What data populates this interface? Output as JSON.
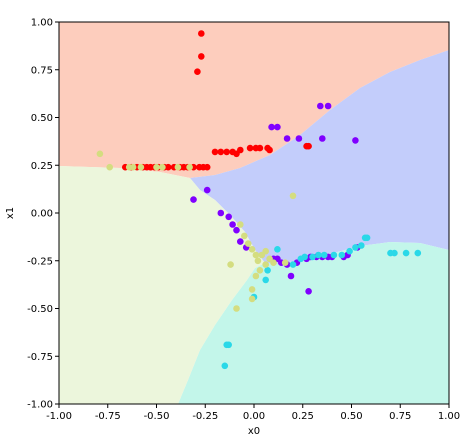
{
  "chart_data": {
    "type": "scatter",
    "title": "",
    "xlabel": "x0",
    "ylabel": "x1",
    "xlim": [
      -1.0,
      1.0
    ],
    "ylim": [
      -1.0,
      1.0
    ],
    "xticks": [
      "-1.00",
      "-0.75",
      "-0.50",
      "-0.25",
      "0.00",
      "0.25",
      "0.50",
      "0.75",
      "1.00"
    ],
    "yticks": [
      "1.00",
      "0.75",
      "0.50",
      "0.25",
      "0.00",
      "-0.25",
      "-0.50",
      "-0.75",
      "-1.00"
    ],
    "grid": false,
    "legend": "none",
    "decision_regions": [
      {
        "class": "red",
        "color": "#fdcdbd"
      },
      {
        "class": "purple",
        "color": "#c3cdfb"
      },
      {
        "class": "cyan",
        "color": "#c3f6ea"
      },
      {
        "class": "yellow",
        "color": "#ecf6dc"
      }
    ],
    "series": [
      {
        "color": "#ff0000",
        "points": [
          [
            -0.27,
            0.94
          ],
          [
            -0.27,
            0.82
          ],
          [
            -0.29,
            0.74
          ],
          [
            -0.66,
            0.24
          ],
          [
            -0.63,
            0.24
          ],
          [
            -0.6,
            0.24
          ],
          [
            -0.57,
            0.24
          ],
          [
            -0.55,
            0.24
          ],
          [
            -0.53,
            0.24
          ],
          [
            -0.51,
            0.24
          ],
          [
            -0.49,
            0.24
          ],
          [
            -0.46,
            0.24
          ],
          [
            -0.44,
            0.24
          ],
          [
            -0.41,
            0.24
          ],
          [
            -0.38,
            0.24
          ],
          [
            -0.36,
            0.24
          ],
          [
            -0.34,
            0.24
          ],
          [
            -0.31,
            0.24
          ],
          [
            -0.28,
            0.24
          ],
          [
            -0.26,
            0.24
          ],
          [
            -0.24,
            0.24
          ],
          [
            -0.2,
            0.32
          ],
          [
            -0.17,
            0.32
          ],
          [
            -0.14,
            0.32
          ],
          [
            -0.11,
            0.32
          ],
          [
            -0.09,
            0.31
          ],
          [
            -0.07,
            0.33
          ],
          [
            -0.02,
            0.34
          ],
          [
            0.01,
            0.34
          ],
          [
            0.03,
            0.34
          ],
          [
            0.07,
            0.34
          ],
          [
            0.08,
            0.33
          ],
          [
            0.27,
            0.35
          ],
          [
            0.28,
            0.35
          ]
        ]
      },
      {
        "color": "#8000ff",
        "points": [
          [
            0.09,
            0.45
          ],
          [
            0.12,
            0.45
          ],
          [
            0.34,
            0.56
          ],
          [
            0.38,
            0.56
          ],
          [
            0.17,
            0.39
          ],
          [
            0.23,
            0.39
          ],
          [
            0.35,
            0.39
          ],
          [
            0.52,
            0.38
          ],
          [
            -0.31,
            0.07
          ],
          [
            -0.24,
            0.12
          ],
          [
            -0.17,
            0.0
          ],
          [
            -0.13,
            -0.02
          ],
          [
            -0.11,
            -0.06
          ],
          [
            -0.09,
            -0.09
          ],
          [
            -0.07,
            -0.15
          ],
          [
            -0.04,
            -0.18
          ],
          [
            0.1,
            -0.24
          ],
          [
            0.12,
            -0.24
          ],
          [
            0.14,
            -0.26
          ],
          [
            0.17,
            -0.27
          ],
          [
            0.19,
            -0.33
          ],
          [
            0.22,
            -0.26
          ],
          [
            0.27,
            -0.24
          ],
          [
            0.29,
            -0.23
          ],
          [
            0.32,
            -0.23
          ],
          [
            0.35,
            -0.23
          ],
          [
            0.38,
            -0.23
          ],
          [
            0.4,
            -0.23
          ],
          [
            0.46,
            -0.23
          ],
          [
            0.48,
            -0.22
          ],
          [
            0.53,
            -0.18
          ],
          [
            0.28,
            -0.41
          ]
        ]
      },
      {
        "color": "#2ad8e8",
        "points": [
          [
            0.07,
            -0.3
          ],
          [
            0.06,
            -0.35
          ],
          [
            0.0,
            -0.44
          ],
          [
            0.12,
            -0.19
          ],
          [
            0.2,
            -0.27
          ],
          [
            0.24,
            -0.24
          ],
          [
            0.26,
            -0.23
          ],
          [
            0.3,
            -0.23
          ],
          [
            0.33,
            -0.22
          ],
          [
            0.36,
            -0.22
          ],
          [
            0.41,
            -0.22
          ],
          [
            0.45,
            -0.22
          ],
          [
            0.49,
            -0.2
          ],
          [
            0.52,
            -0.18
          ],
          [
            0.55,
            -0.17
          ],
          [
            0.57,
            -0.13
          ],
          [
            0.58,
            -0.13
          ],
          [
            0.7,
            -0.21
          ],
          [
            0.72,
            -0.21
          ],
          [
            0.78,
            -0.21
          ],
          [
            0.84,
            -0.21
          ],
          [
            -0.13,
            -0.69
          ],
          [
            -0.14,
            -0.69
          ],
          [
            -0.15,
            -0.8
          ]
        ]
      },
      {
        "color": "#d4dd80",
        "points": [
          [
            -0.79,
            0.31
          ],
          [
            -0.74,
            0.24
          ],
          [
            -0.64,
            0.24
          ],
          [
            -0.62,
            0.24
          ],
          [
            -0.58,
            0.24
          ],
          [
            -0.5,
            0.24
          ],
          [
            -0.47,
            0.24
          ],
          [
            -0.39,
            0.24
          ],
          [
            -0.33,
            0.24
          ],
          [
            0.2,
            0.09
          ],
          [
            -0.07,
            -0.06
          ],
          [
            -0.05,
            -0.12
          ],
          [
            -0.03,
            -0.16
          ],
          [
            -0.01,
            -0.19
          ],
          [
            0.01,
            -0.22
          ],
          [
            0.02,
            -0.25
          ],
          [
            0.04,
            -0.22
          ],
          [
            0.06,
            -0.2
          ],
          [
            0.08,
            -0.24
          ],
          [
            0.1,
            -0.26
          ],
          [
            0.06,
            -0.27
          ],
          [
            0.03,
            -0.3
          ],
          [
            0.01,
            -0.33
          ],
          [
            -0.01,
            -0.4
          ],
          [
            -0.01,
            -0.45
          ],
          [
            -0.09,
            -0.5
          ],
          [
            -0.12,
            -0.27
          ],
          [
            0.16,
            -0.26
          ]
        ]
      }
    ]
  }
}
